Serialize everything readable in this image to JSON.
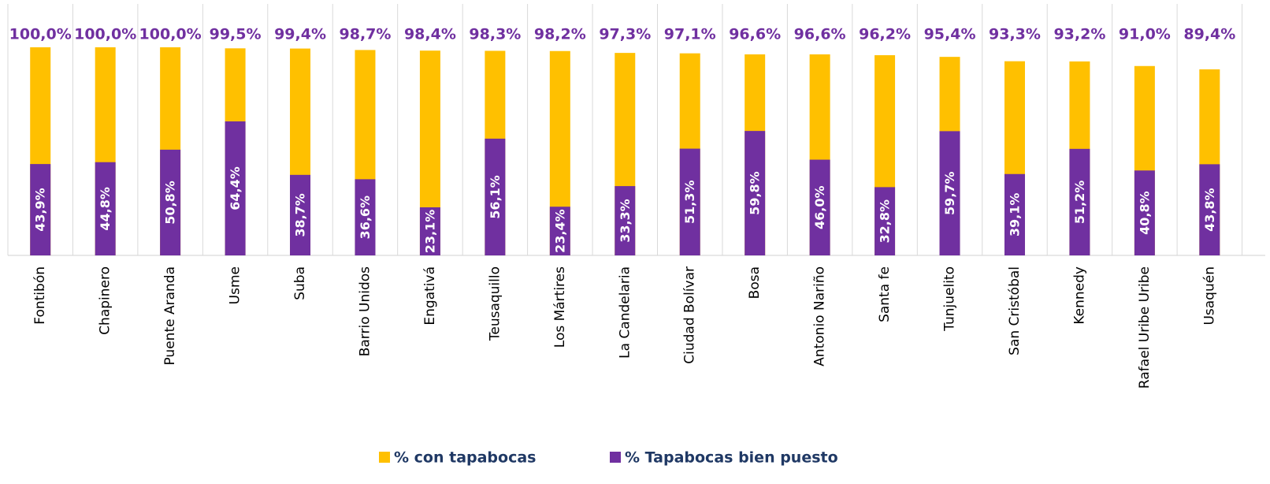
{
  "chart_data": {
    "type": "bar",
    "categories": [
      "Fontibón",
      "Chapinero",
      "Puente Aranda",
      "Usme",
      "Suba",
      "Barrio Unidos",
      "Engativá",
      "Teusaquillo",
      "Los Mártires",
      "La Candelaria",
      "Ciudad Bolívar",
      "Bosa",
      "Antonio Nariño",
      "Santa fe",
      "Tunjuelito",
      "San Cristóbal",
      "Kennedy",
      "Rafael Uribe Uribe",
      "Usaquén"
    ],
    "series": [
      {
        "name": "% con tapabocas",
        "color": "#ffc000",
        "values": [
          100.0,
          100.0,
          100.0,
          99.5,
          99.4,
          98.7,
          98.4,
          98.3,
          98.2,
          97.3,
          97.1,
          96.6,
          96.6,
          96.2,
          95.4,
          93.3,
          93.2,
          91.0,
          89.4
        ],
        "value_labels": [
          "100,0%",
          "100,0%",
          "100,0%",
          "99,5%",
          "99,4%",
          "98,7%",
          "98,4%",
          "98,3%",
          "98,2%",
          "97,3%",
          "97,1%",
          "96,6%",
          "96,6%",
          "96,2%",
          "95,4%",
          "93,3%",
          "93,2%",
          "91,0%",
          "89,4%"
        ]
      },
      {
        "name": "% Tapabocas bien puesto",
        "color": "#7030a0",
        "values": [
          43.9,
          44.8,
          50.8,
          64.4,
          38.7,
          36.6,
          23.1,
          56.1,
          23.4,
          33.3,
          51.3,
          59.8,
          46.0,
          32.8,
          59.7,
          39.1,
          51.2,
          40.8,
          43.8
        ],
        "value_labels": [
          "43,9%",
          "44,8%",
          "50,8%",
          "64,4%",
          "38,7%",
          "36,6%",
          "23,1%",
          "56,1%",
          "23,4%",
          "33,3%",
          "51,3%",
          "59,8%",
          "46,0%",
          "32,8%",
          "59,7%",
          "39,1%",
          "51,2%",
          "40,8%",
          "43,8%"
        ]
      }
    ]
  }
}
